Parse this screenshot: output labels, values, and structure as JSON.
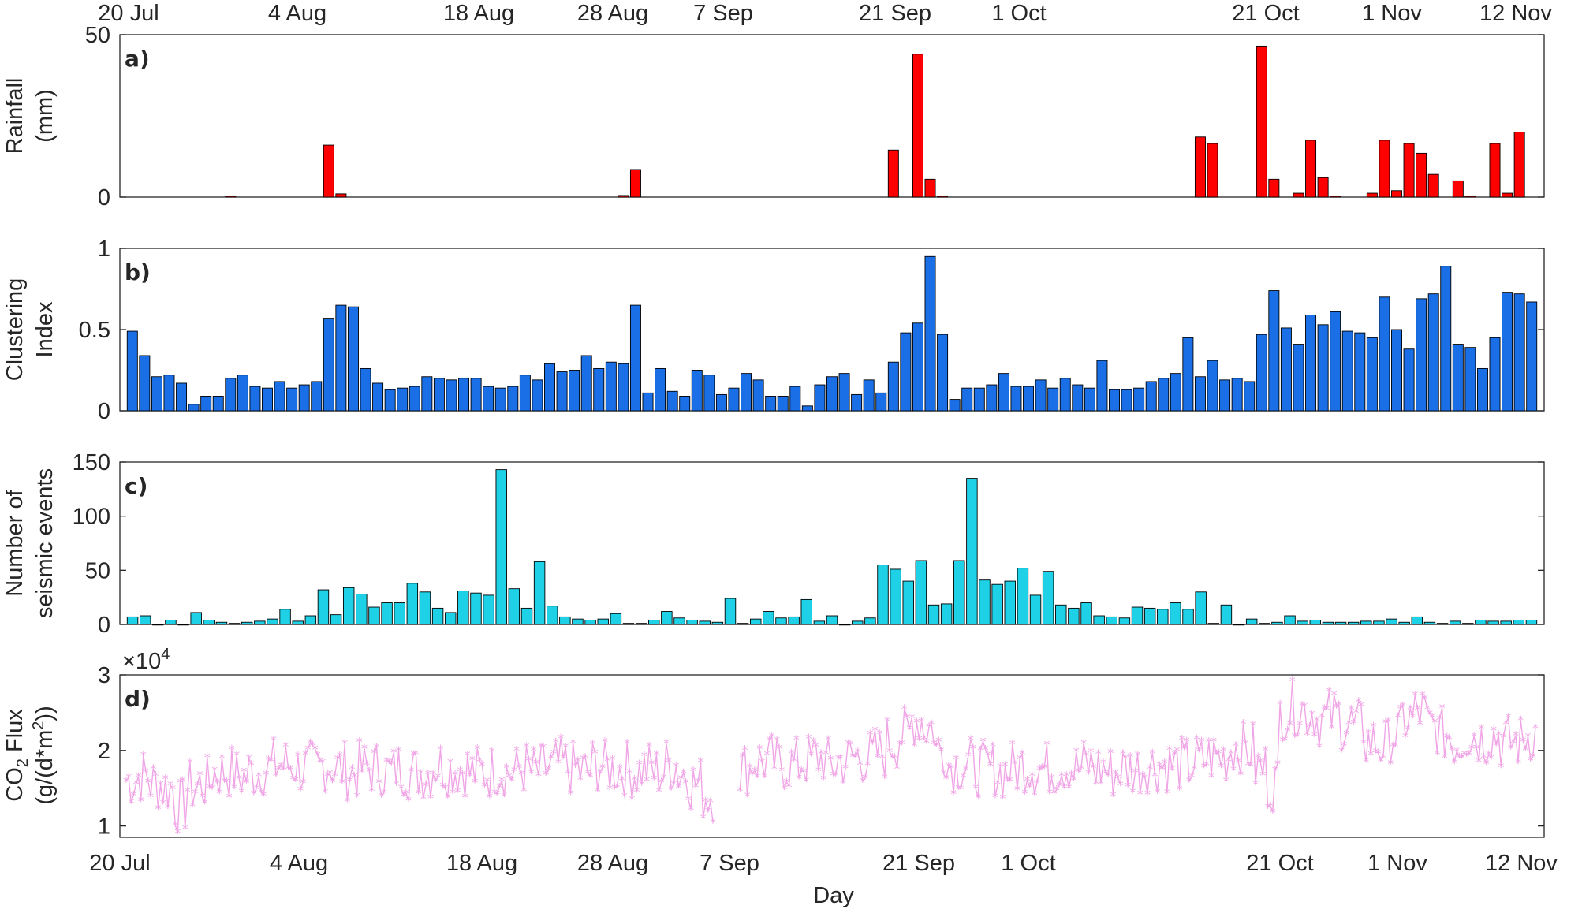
{
  "chart_data": [
    {
      "panel": "a)",
      "type": "bar",
      "ylabel": [
        "Rainfall",
        "(mm)"
      ],
      "ylim": [
        0,
        50
      ],
      "yticks": [
        0,
        50
      ],
      "bar_color": "#ff0000",
      "xtick_labels": [
        "20 Jul",
        "4 Aug",
        "18 Aug",
        "28 Aug",
        "7 Sep",
        "21 Sep",
        "1 Oct",
        "21 Oct",
        "1 Nov",
        "12 Nov"
      ],
      "values": [
        0,
        0,
        0,
        0,
        0,
        0,
        0,
        0,
        0,
        0,
        0,
        0,
        0,
        0,
        0,
        0,
        0,
        0,
        0,
        0,
        0,
        0,
        0,
        0,
        0,
        0,
        0,
        0,
        0,
        0,
        0,
        0,
        0,
        0,
        0,
        0,
        0,
        0,
        0,
        0,
        0,
        0,
        0,
        0,
        0,
        0,
        0,
        0,
        0,
        0,
        0,
        0,
        0,
        0,
        0,
        0,
        0,
        0,
        0,
        0,
        0,
        0,
        0,
        0,
        0,
        0,
        0,
        0,
        0,
        0,
        0,
        0,
        0,
        0,
        0,
        0,
        0,
        0,
        0,
        0,
        0,
        0,
        0,
        0,
        0,
        0,
        0,
        0,
        0,
        0,
        0,
        0,
        0,
        0,
        0,
        0,
        0,
        0,
        0,
        0,
        0,
        0,
        0,
        0,
        0,
        0,
        0,
        0,
        0,
        0,
        0,
        0,
        0,
        0,
        0
      ],
      "events": [
        {
          "day": 8,
          "value": 0.3
        },
        {
          "day": 16,
          "value": 16
        },
        {
          "day": 17,
          "value": 1
        },
        {
          "day": 40,
          "value": 0.5
        },
        {
          "day": 41,
          "value": 8.5
        },
        {
          "day": 62,
          "value": 14.5
        },
        {
          "day": 64,
          "value": 44
        },
        {
          "day": 65,
          "value": 5.5
        },
        {
          "day": 66,
          "value": 0.3
        },
        {
          "day": 87,
          "value": 18.5
        },
        {
          "day": 88,
          "value": 16.5
        },
        {
          "day": 92,
          "value": 46.5
        },
        {
          "day": 93,
          "value": 5.5
        },
        {
          "day": 95,
          "value": 1.2
        },
        {
          "day": 96,
          "value": 17.5
        },
        {
          "day": 97,
          "value": 6
        },
        {
          "day": 98,
          "value": 0.3
        },
        {
          "day": 101,
          "value": 1.2
        },
        {
          "day": 102,
          "value": 17.5
        },
        {
          "day": 103,
          "value": 2
        },
        {
          "day": 104,
          "value": 16.5
        },
        {
          "day": 105,
          "value": 13.5
        },
        {
          "day": 106,
          "value": 7
        },
        {
          "day": 108,
          "value": 5
        },
        {
          "day": 109,
          "value": 0.3
        },
        {
          "day": 111,
          "value": 16.5
        },
        {
          "day": 112,
          "value": 1.2
        },
        {
          "day": 113,
          "value": 20
        }
      ]
    },
    {
      "panel": "b)",
      "type": "bar",
      "ylabel": [
        "Clustering",
        "Index"
      ],
      "ylim": [
        0,
        1
      ],
      "yticks": [
        0,
        0.5,
        1
      ],
      "bar_color": "#1a6fe6",
      "values": [
        0.49,
        0.34,
        0.21,
        0.22,
        0.17,
        0.04,
        0.09,
        0.09,
        0.2,
        0.22,
        0.15,
        0.14,
        0.18,
        0.14,
        0.16,
        0.18,
        0.57,
        0.65,
        0.64,
        0.26,
        0.17,
        0.13,
        0.14,
        0.15,
        0.21,
        0.2,
        0.19,
        0.2,
        0.2,
        0.15,
        0.14,
        0.15,
        0.22,
        0.19,
        0.29,
        0.24,
        0.25,
        0.34,
        0.26,
        0.3,
        0.29,
        0.65,
        0.11,
        0.26,
        0.12,
        0.09,
        0.25,
        0.22,
        0.1,
        0.14,
        0.23,
        0.19,
        0.09,
        0.09,
        0.15,
        0.03,
        0.16,
        0.21,
        0.23,
        0.1,
        0.19,
        0.11,
        0.3,
        0.48,
        0.54,
        0.95,
        0.47,
        0.07,
        0.14,
        0.14,
        0.16,
        0.23,
        0.15,
        0.15,
        0.19,
        0.14,
        0.2,
        0.16,
        0.14,
        0.31,
        0.13,
        0.13,
        0.14,
        0.18,
        0.2,
        0.23,
        0.45,
        0.21,
        0.31,
        0.19,
        0.2,
        0.18,
        0.47,
        0.74,
        0.51,
        0.41,
        0.59,
        0.53,
        0.61,
        0.49,
        0.48,
        0.45,
        0.7,
        0.5,
        0.38,
        0.69,
        0.72,
        0.89,
        0.41,
        0.39,
        0.26,
        0.45,
        0.73,
        0.72,
        0.67
      ]
    },
    {
      "panel": "c)",
      "type": "bar",
      "ylabel": [
        "Number of",
        "seismic events"
      ],
      "ylim": [
        0,
        150
      ],
      "yticks": [
        0,
        50,
        100,
        150
      ],
      "bar_color": "#1ed1e6",
      "values": [
        7,
        8,
        0,
        4,
        0,
        11,
        4,
        2,
        1,
        2,
        3,
        5,
        14,
        3,
        8,
        32,
        9,
        34,
        28,
        16,
        20,
        20,
        38,
        30,
        15,
        11,
        31,
        29,
        27,
        143,
        33,
        15,
        58,
        17,
        7,
        5,
        4,
        5,
        10,
        1,
        1,
        4,
        12,
        6,
        4,
        3,
        2,
        24,
        1,
        5,
        12,
        6,
        7,
        23,
        3,
        8,
        0,
        3,
        6,
        55,
        51,
        40,
        59,
        18,
        19,
        59,
        135,
        41,
        37,
        40,
        52,
        27,
        49,
        18,
        15,
        20,
        8,
        7,
        6,
        16,
        15,
        14,
        20,
        14,
        30,
        1,
        18,
        0,
        5,
        1,
        2,
        8,
        3,
        4,
        2,
        2,
        2,
        3,
        3,
        5,
        2,
        7,
        2,
        1,
        3,
        1,
        4,
        3,
        3,
        4,
        4
      ]
    },
    {
      "panel": "d)",
      "type": "line",
      "ylabel": [
        "CO2 Flux",
        "(g/(d*m2))"
      ],
      "ylabel_sub": [
        "2",
        "2"
      ],
      "ylim": [
        0.85,
        3
      ],
      "yticks": [
        1,
        2,
        3
      ],
      "exponent_label": "×10",
      "exponent_power": "4",
      "line_color": "#f0a6e6",
      "marker": "*",
      "xlabel": "Day",
      "daily_mean": [
        1.6,
        1.65,
        1.55,
        1.5,
        1.25,
        1.5,
        1.55,
        1.7,
        1.7,
        1.65,
        1.7,
        1.75,
        1.8,
        1.8,
        1.75,
        1.75,
        1.8,
        1.75,
        1.7,
        1.75,
        1.75,
        1.7,
        1.75,
        1.7,
        1.7,
        1.8,
        1.75,
        1.75,
        1.7,
        1.7,
        1.75,
        1.7,
        1.75,
        1.7,
        1.75,
        1.8,
        1.75,
        1.7,
        1.8,
        1.75,
        1.75,
        1.7,
        1.75,
        1.7,
        1.8,
        1.7,
        1.55,
        1.4,
        null,
        null,
        1.75,
        1.85,
        1.85,
        1.8,
        1.8,
        1.85,
        1.9,
        1.8,
        1.85,
        1.9,
        1.9,
        1.95,
        2.1,
        2.2,
        2.4,
        2.3,
        2.0,
        1.8,
        1.8,
        1.75,
        1.75,
        1.7,
        1.75,
        1.8,
        1.75,
        1.75,
        1.8,
        1.75,
        1.8,
        1.75,
        1.7,
        1.75,
        1.75,
        1.8,
        1.8,
        1.8,
        1.8,
        1.85,
        1.9,
        1.9,
        2.05,
        2.0,
        1.75,
        1.55,
        2.5,
        2.55,
        2.5,
        2.4,
        2.45,
        2.35,
        2.3,
        2.1,
        2.05,
        2.2,
        2.4,
        2.5,
        2.3,
        2.2,
        2.1,
        2.2,
        2.15,
        2.2,
        2.1,
        2.1,
        2.2
      ]
    }
  ]
}
